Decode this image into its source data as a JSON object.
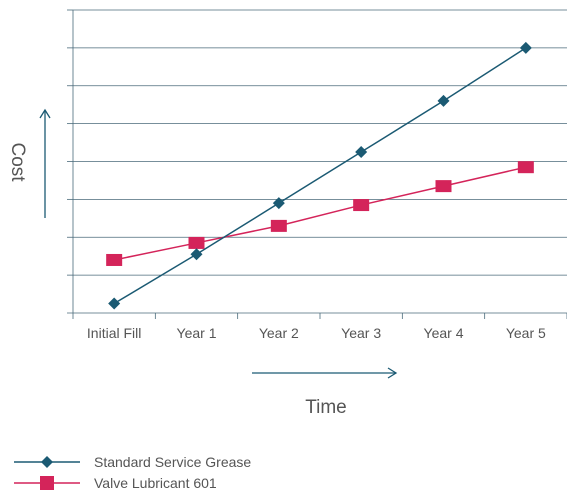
{
  "chart_data": {
    "type": "line",
    "categories": [
      "Initial Fill",
      "Year 1",
      "Year 2",
      "Year 3",
      "Year 4",
      "Year 5"
    ],
    "xlabel": "Time",
    "ylabel": "Cost",
    "ylim": [
      0,
      8
    ],
    "grid": true,
    "y_tick_labels_shown": false,
    "legend_position": "bottom-left",
    "series": [
      {
        "name": "Standard Service Grease",
        "color": "#1b5a73",
        "marker": "diamond",
        "values": [
          0.25,
          1.55,
          2.9,
          4.25,
          5.6,
          7.0
        ]
      },
      {
        "name": "Valve Lubricant 601",
        "color": "#d4245a",
        "marker": "square",
        "values": [
          1.4,
          1.85,
          2.3,
          2.85,
          3.35,
          3.85
        ]
      }
    ]
  }
}
